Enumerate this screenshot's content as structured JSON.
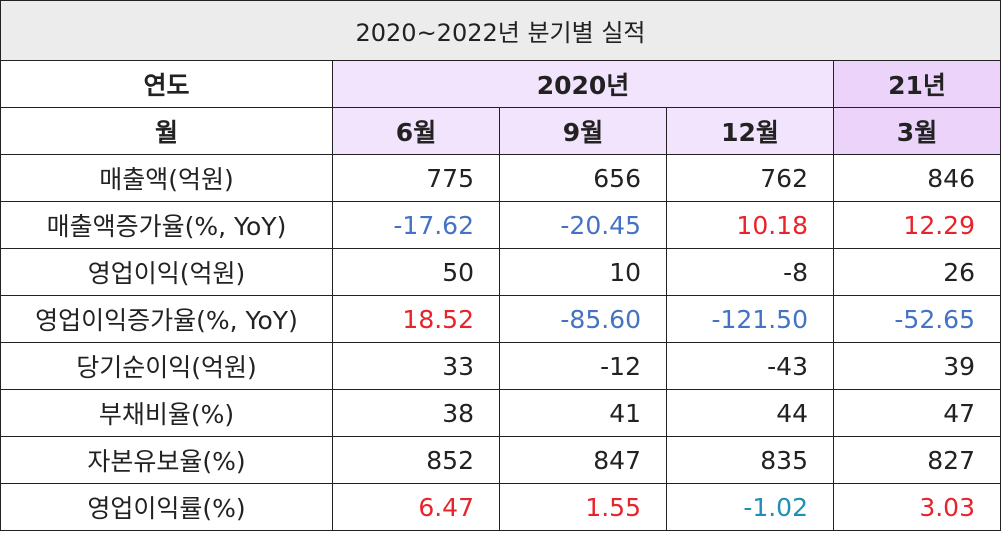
{
  "title": "2020~2022년 분기별 실적",
  "header": {
    "year_label": "연도",
    "year_2020": "2020년",
    "year_21": "21년",
    "month_label": "월",
    "months": [
      "6월",
      "9월",
      "12월",
      "3월"
    ]
  },
  "rows": [
    {
      "label": "매출액(억원)",
      "values": [
        "775",
        "656",
        "762",
        "846"
      ]
    },
    {
      "label": "매출액증가율(%, YoY)",
      "values": [
        "-17.62",
        "-20.45",
        "10.18",
        "12.29"
      ]
    },
    {
      "label": "영업이익(억원)",
      "values": [
        "50",
        "10",
        "-8",
        "26"
      ]
    },
    {
      "label": "영업이익증가율(%, YoY)",
      "values": [
        "18.52",
        "-85.60",
        "-121.50",
        "-52.65"
      ]
    },
    {
      "label": "당기순이익(억원)",
      "values": [
        "33",
        "-12",
        "-43",
        "39"
      ]
    },
    {
      "label": "부채비율(%)",
      "values": [
        "38",
        "41",
        "44",
        "47"
      ]
    },
    {
      "label": "자본유보율(%)",
      "values": [
        "852",
        "847",
        "835",
        "827"
      ]
    },
    {
      "label": "영업이익률(%)",
      "values": [
        "6.47",
        "1.55",
        "-1.02",
        "3.03"
      ]
    }
  ],
  "colors": {
    "header_2020_bg": "#f2e4fc",
    "header_21_bg": "#ebd3fa",
    "title_bg": "#ececec",
    "negative_blue": "#4472c4",
    "positive_red": "#e8232a",
    "cyan": "#1f8fb8"
  }
}
